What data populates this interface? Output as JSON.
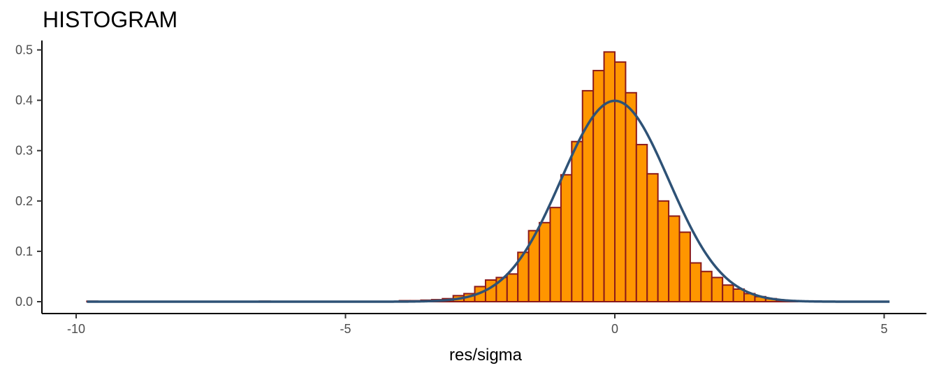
{
  "chart_data": {
    "type": "bar",
    "title": "HISTOGRAM",
    "xlabel": "res/sigma",
    "ylabel": "",
    "xlim": [
      -10.5,
      5.7
    ],
    "ylim": [
      -0.02,
      0.52
    ],
    "xticks": [
      -10,
      -5,
      0,
      5
    ],
    "xtick_labels": [
      "-10",
      "-5",
      "0",
      "5"
    ],
    "yticks": [
      0.0,
      0.1,
      0.2,
      0.3,
      0.4,
      0.5
    ],
    "ytick_labels": [
      "0.0",
      "0.1",
      "0.2",
      "0.3",
      "0.4",
      "0.5"
    ],
    "grid": false,
    "legend": "none",
    "bin_width": 0.2,
    "bins": [
      {
        "x": -3.4,
        "density": 0.004
      },
      {
        "x": -3.2,
        "density": 0.006
      },
      {
        "x": -3.0,
        "density": 0.012
      },
      {
        "x": -2.8,
        "density": 0.016
      },
      {
        "x": -2.6,
        "density": 0.03
      },
      {
        "x": -2.4,
        "density": 0.043
      },
      {
        "x": -2.2,
        "density": 0.048
      },
      {
        "x": -2.0,
        "density": 0.055
      },
      {
        "x": -1.8,
        "density": 0.098
      },
      {
        "x": -1.6,
        "density": 0.141
      },
      {
        "x": -1.4,
        "density": 0.157
      },
      {
        "x": -1.2,
        "density": 0.187
      },
      {
        "x": -1.0,
        "density": 0.252
      },
      {
        "x": -0.8,
        "density": 0.318
      },
      {
        "x": -0.6,
        "density": 0.419
      },
      {
        "x": -0.4,
        "density": 0.459
      },
      {
        "x": -0.2,
        "density": 0.496
      },
      {
        "x": 0.0,
        "density": 0.476
      },
      {
        "x": 0.2,
        "density": 0.415
      },
      {
        "x": 0.4,
        "density": 0.312
      },
      {
        "x": 0.6,
        "density": 0.254
      },
      {
        "x": 0.8,
        "density": 0.2
      },
      {
        "x": 1.0,
        "density": 0.17
      },
      {
        "x": 1.2,
        "density": 0.138
      },
      {
        "x": 1.4,
        "density": 0.077
      },
      {
        "x": 1.6,
        "density": 0.06
      },
      {
        "x": 1.8,
        "density": 0.048
      },
      {
        "x": 2.0,
        "density": 0.033
      },
      {
        "x": 2.2,
        "density": 0.025
      },
      {
        "x": 2.4,
        "density": 0.016
      },
      {
        "x": 2.6,
        "density": 0.01
      },
      {
        "x": 2.8,
        "density": 0.006
      },
      {
        "x": 3.0,
        "density": 0.003
      },
      {
        "x": 3.2,
        "density": 0.002
      }
    ],
    "sparse_bins_left": [
      {
        "x": -9.8,
        "density": 0.001
      },
      {
        "x": -6.6,
        "density": 0.001
      },
      {
        "x": -4.0,
        "density": 0.002
      },
      {
        "x": -3.8,
        "density": 0.002
      },
      {
        "x": -3.6,
        "density": 0.003
      }
    ],
    "density_curve": {
      "type": "normal",
      "mean": 0,
      "sd": 1,
      "x_range": [
        -9.8,
        5.1
      ]
    },
    "colors": {
      "bar_fill": "#FF9600",
      "bar_stroke": "#8B1A1A",
      "curve": "#2E5276"
    }
  }
}
